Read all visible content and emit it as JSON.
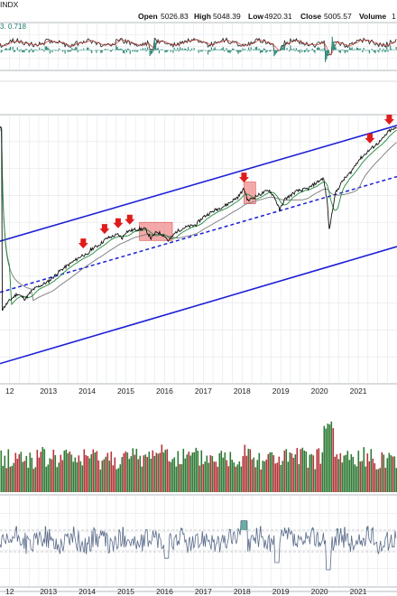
{
  "header": {
    "symbol_tail": "INDX",
    "open_label": "Open",
    "open": "5026.83",
    "high_label": "High",
    "high": "5048.39",
    "low_label": "Low",
    "low": "4920.31",
    "close_label": "Close",
    "close": "5005.57",
    "volume_label": "Volume",
    "volume": "1",
    "top_indicator_values": "3. 0.718"
  },
  "chart_data": {
    "type": "line",
    "x_tick_labels": [
      "12",
      "2013",
      "2014",
      "2015",
      "2016",
      "2017",
      "2018",
      "2019",
      "2020",
      "2021"
    ],
    "x_tick_years": [
      2012,
      2013,
      2014,
      2015,
      2016,
      2017,
      2018,
      2019,
      2020,
      2021
    ],
    "xlim": [
      2011.75,
      2022.0
    ],
    "price_series": [
      [
        2011.8,
        -0.05
      ],
      [
        2012.0,
        0.02
      ],
      [
        2012.2,
        0.07
      ],
      [
        2012.4,
        0.03
      ],
      [
        2012.6,
        0.1
      ],
      [
        2012.8,
        0.13
      ],
      [
        2013.0,
        0.16
      ],
      [
        2013.3,
        0.24
      ],
      [
        2013.6,
        0.3
      ],
      [
        2013.9,
        0.36
      ],
      [
        2014.0,
        0.35
      ],
      [
        2014.1,
        0.4
      ],
      [
        2014.3,
        0.43
      ],
      [
        2014.5,
        0.48
      ],
      [
        2014.8,
        0.51
      ],
      [
        2014.9,
        0.48
      ],
      [
        2015.0,
        0.53
      ],
      [
        2015.3,
        0.55
      ],
      [
        2015.5,
        0.55
      ],
      [
        2015.65,
        0.48
      ],
      [
        2015.8,
        0.53
      ],
      [
        2016.0,
        0.5
      ],
      [
        2016.1,
        0.46
      ],
      [
        2016.3,
        0.53
      ],
      [
        2016.5,
        0.56
      ],
      [
        2016.8,
        0.58
      ],
      [
        2017.0,
        0.64
      ],
      [
        2017.3,
        0.69
      ],
      [
        2017.6,
        0.73
      ],
      [
        2017.9,
        0.79
      ],
      [
        2018.05,
        0.85
      ],
      [
        2018.15,
        0.76
      ],
      [
        2018.4,
        0.8
      ],
      [
        2018.7,
        0.84
      ],
      [
        2018.85,
        0.78
      ],
      [
        2018.97,
        0.69
      ],
      [
        2019.1,
        0.77
      ],
      [
        2019.4,
        0.83
      ],
      [
        2019.7,
        0.85
      ],
      [
        2019.9,
        0.89
      ],
      [
        2020.1,
        0.93
      ],
      [
        2020.2,
        0.75
      ],
      [
        2020.25,
        0.54
      ],
      [
        2020.4,
        0.81
      ],
      [
        2020.6,
        0.91
      ],
      [
        2020.8,
        0.97
      ],
      [
        2021.0,
        1.06
      ],
      [
        2021.3,
        1.14
      ],
      [
        2021.6,
        1.21
      ],
      [
        2021.8,
        1.28
      ],
      [
        2022.0,
        1.3
      ]
    ],
    "channel": {
      "upper": [
        [
          2011.75,
          0.46
        ],
        [
          2022.0,
          1.32
        ]
      ],
      "mid_dashed": [
        [
          2011.75,
          0.08
        ],
        [
          2022.0,
          0.94
        ]
      ],
      "lower": [
        [
          2011.75,
          -0.45
        ],
        [
          2022.0,
          0.42
        ]
      ]
    },
    "resistance_arrows_x": [
      2013.9,
      2014.45,
      2014.8,
      2015.1,
      2018.05,
      2021.3,
      2021.8
    ],
    "highlight_boxes": [
      [
        2015.35,
        2016.2
      ],
      [
        2018.05,
        2018.35
      ]
    ],
    "volume_max": 1.0,
    "series": [
      {
        "name": "INDX",
        "color": "#111111"
      },
      {
        "name": "",
        "color": "#1f8a3b"
      },
      {
        "name": "",
        "color": "#7a7a7a"
      }
    ],
    "grid": true
  },
  "colors": {
    "channel": "#1c1fd6",
    "arrow": "#e01b1b",
    "highlight": "#f08c8c",
    "indicator_line": "#5a6b8a",
    "indicator_fill": "#2e8b7a",
    "vol_up": "#2f7a35",
    "vol_down": "#b8323a"
  }
}
